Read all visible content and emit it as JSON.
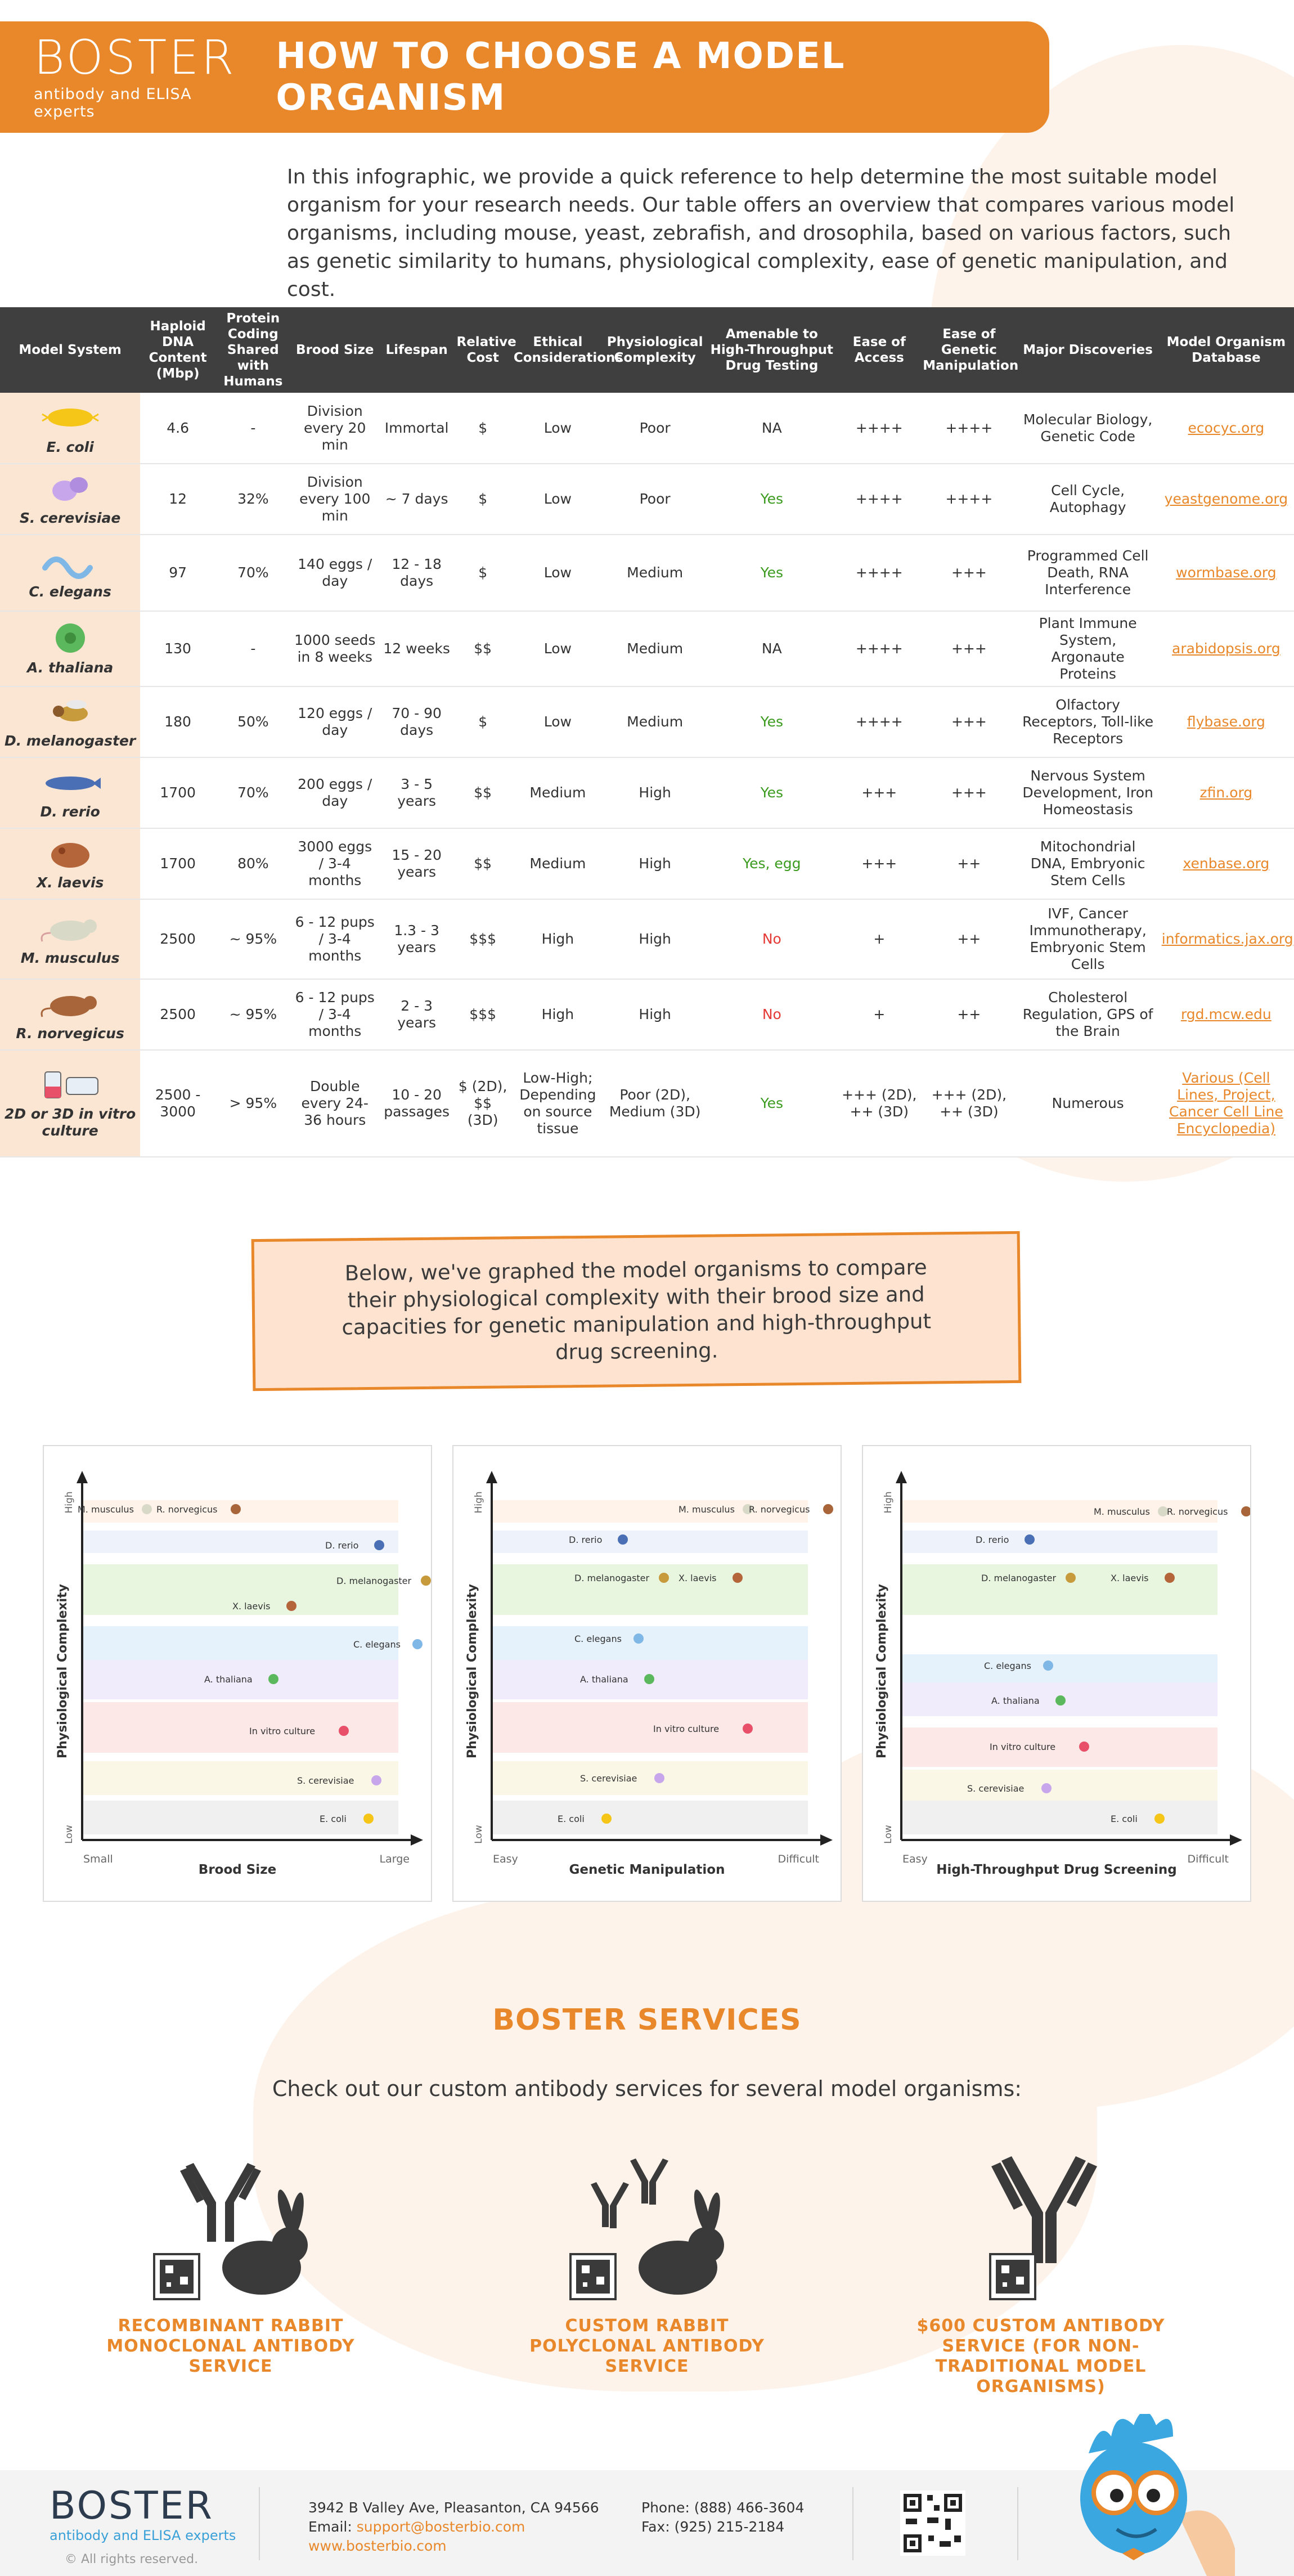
{
  "header": {
    "logo": "BOSTER",
    "logo_sub": "antibody and ELISA experts",
    "title": "HOW TO CHOOSE A MODEL ORGANISM"
  },
  "intro": "In this infographic, we provide a quick reference to help determine the most suitable model organism for your research needs. Our table offers an overview that compares various model organisms, including mouse, yeast, zebrafish, and drosophila, based on various factors, such as genetic similarity to humans, physiological complexity, ease of genetic manipulation, and cost.",
  "table": {
    "headers": [
      "Model System",
      "Haploid DNA Content (Mbp)",
      "Protein Coding Shared with Humans",
      "Brood Size",
      "Lifespan",
      "Relative Cost",
      "Ethical Considerations",
      "Physiological Complexity",
      "Amenable to High-Throughput Drug Testing",
      "Ease of Access",
      "Ease of Genetic Manipulation",
      "Major Discoveries",
      "Model Organism Database"
    ],
    "rows": [
      {
        "name": "E. coli",
        "dna": "4.6",
        "protein": "-",
        "brood": "Division every 20 min",
        "lifespan": "Immortal",
        "cost": "$",
        "ethical": "Low",
        "complexity": "Poor",
        "htp": "NA",
        "access": "++++",
        "genetic": "++++",
        "discoveries": "Molecular Biology, Genetic Code",
        "db": "ecocyc.org"
      },
      {
        "name": "S. cerevisiae",
        "dna": "12",
        "protein": "32%",
        "brood": "Division every 100 min",
        "lifespan": "~ 7 days",
        "cost": "$",
        "ethical": "Low",
        "complexity": "Poor",
        "htp": "Yes",
        "access": "++++",
        "genetic": "++++",
        "discoveries": "Cell Cycle, Autophagy",
        "db": "yeastgenome.org"
      },
      {
        "name": "C. elegans",
        "dna": "97",
        "protein": "70%",
        "brood": "140 eggs / day",
        "lifespan": "12 - 18 days",
        "cost": "$",
        "ethical": "Low",
        "complexity": "Medium",
        "htp": "Yes",
        "access": "++++",
        "genetic": "+++",
        "discoveries": "Programmed Cell Death, RNA Interference",
        "db": "wormbase.org"
      },
      {
        "name": "A. thaliana",
        "dna": "130",
        "protein": "-",
        "brood": "1000 seeds in 8 weeks",
        "lifespan": "12 weeks",
        "cost": "$$",
        "ethical": "Low",
        "complexity": "Medium",
        "htp": "NA",
        "access": "++++",
        "genetic": "+++",
        "discoveries": "Plant Immune System, Argonaute Proteins",
        "db": "arabidopsis.org"
      },
      {
        "name": "D. melanogaster",
        "dna": "180",
        "protein": "50%",
        "brood": "120 eggs / day",
        "lifespan": "70 - 90 days",
        "cost": "$",
        "ethical": "Low",
        "complexity": "Medium",
        "htp": "Yes",
        "access": "++++",
        "genetic": "+++",
        "discoveries": "Olfactory Receptors, Toll-like Receptors",
        "db": "flybase.org"
      },
      {
        "name": "D. rerio",
        "dna": "1700",
        "protein": "70%",
        "brood": "200 eggs / day",
        "lifespan": "3 - 5 years",
        "cost": "$$",
        "ethical": "Medium",
        "complexity": "High",
        "htp": "Yes",
        "access": "+++",
        "genetic": "+++",
        "discoveries": "Nervous System Development, Iron Homeostasis",
        "db": "zfin.org"
      },
      {
        "name": "X. laevis",
        "dna": "1700",
        "protein": "80%",
        "brood": "3000 eggs / 3-4 months",
        "lifespan": "15 - 20 years",
        "cost": "$$",
        "ethical": "Medium",
        "complexity": "High",
        "htp": "Yes, egg",
        "access": "+++",
        "genetic": "++",
        "discoveries": "Mitochondrial DNA, Embryonic Stem Cells",
        "db": "xenbase.org"
      },
      {
        "name": "M. musculus",
        "dna": "2500",
        "protein": "~ 95%",
        "brood": "6 - 12 pups / 3-4 months",
        "lifespan": "1.3 - 3 years",
        "cost": "$$$",
        "ethical": "High",
        "complexity": "High",
        "htp": "No",
        "access": "+",
        "genetic": "++",
        "discoveries": "IVF, Cancer Immunotherapy, Embryonic Stem Cells",
        "db": "informatics.jax.org"
      },
      {
        "name": "R. norvegicus",
        "dna": "2500",
        "protein": "~ 95%",
        "brood": "6 - 12 pups / 3-4 months",
        "lifespan": "2 - 3 years",
        "cost": "$$$",
        "ethical": "High",
        "complexity": "High",
        "htp": "No",
        "access": "+",
        "genetic": "++",
        "discoveries": "Cholesterol Regulation, GPS of the Brain",
        "db": "rgd.mcw.edu"
      },
      {
        "name": "2D or 3D in vitro culture",
        "dna": "2500 - 3000",
        "protein": "> 95%",
        "brood": "Double every 24-36 hours",
        "lifespan": "10 - 20 passages",
        "cost": "$ (2D), $$ (3D)",
        "ethical": "Low-High; Depending on source tissue",
        "complexity": "Poor (2D), Medium (3D)",
        "htp": "Yes",
        "access": "+++ (2D), ++ (3D)",
        "genetic": "+++ (2D), ++ (3D)",
        "discoveries": "Numerous",
        "db": "Various (Cell Lines, Project, Cancer Cell Line Encyclopedia)"
      }
    ]
  },
  "callout": "Below, we've graphed the model organisms to compare their physiological complexity with their brood size and capacities for genetic manipulation and high-throughput drug screening.",
  "charts": {
    "y_label": "Physiological Complexity",
    "y_high": "High",
    "y_low": "Low",
    "panels": [
      {
        "x_label": "Brood Size",
        "x_left": "Small",
        "x_right": "Large",
        "labels": [
          "M. musculus",
          "R. norvegicus",
          "D. rerio",
          "D. melanogaster",
          "X. laevis",
          "C. elegans",
          "A. thaliana",
          "In vitro culture",
          "S. cerevisiae",
          "E. coli"
        ]
      },
      {
        "x_label": "Genetic Manipulation",
        "x_left": "Easy",
        "x_right": "Difficult",
        "labels": [
          "M. musculus",
          "R. norvegicus",
          "D. rerio",
          "D. melanogaster",
          "X. laevis",
          "C. elegans",
          "A. thaliana",
          "In vitro culture",
          "S. cerevisiae",
          "E. coli"
        ]
      },
      {
        "x_label": "High-Throughput Drug Screening",
        "x_left": "Easy",
        "x_right": "Difficult",
        "labels": [
          "M. musculus",
          "R. norvegicus",
          "D. rerio",
          "D. melanogaster",
          "X. laevis",
          "C. elegans",
          "A. thaliana",
          "In vitro culture",
          "S. cerevisiae",
          "E. coli"
        ]
      }
    ]
  },
  "services": {
    "title": "BOSTER SERVICES",
    "subtitle": "Check out our custom antibody services for several model organisms:",
    "items": [
      {
        "label": "RECOMBINANT RABBIT MONOCLONAL ANTIBODY SERVICE"
      },
      {
        "label": "CUSTOM RABBIT POLYCLONAL ANTIBODY SERVICE"
      },
      {
        "label": "$600 CUSTOM ANTIBODY SERVICE (FOR NON-TRADITIONAL MODEL ORGANISMS)"
      }
    ]
  },
  "footer": {
    "logo": "BOSTER",
    "logo_sub": "antibody and ELISA experts",
    "rights": "© All rights reserved.",
    "address": "3942 B Valley Ave, Pleasanton, CA 94566",
    "email_label": "Email:",
    "email": "support@bosterbio.com",
    "website": "www.bosterbio.com",
    "phone": "Phone: (888) 466-3604",
    "fax": "Fax: (925) 215-2184"
  },
  "colors": {
    "accent": "#e8882a",
    "header_dark": "#3f3f3f",
    "yes": "#3b9b1f",
    "no": "#e53935",
    "organism_cell": "#fbe5d3"
  }
}
